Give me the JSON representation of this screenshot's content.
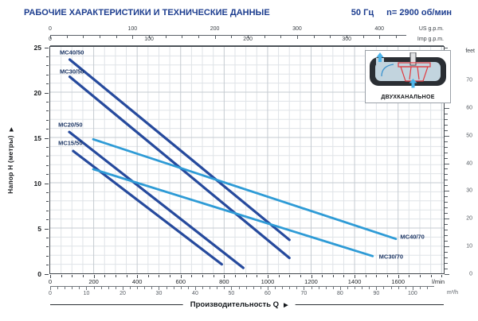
{
  "header": {
    "title": "РАБОЧИЕ ХАРАКТЕРИСТИКИ И ТЕХНИЧЕСКИЕ ДАННЫЕ",
    "frequency": "50 Гц",
    "speed": "n= 2900 об/мин"
  },
  "glyphs": {
    "right_arrow": "▶"
  },
  "colors": {
    "brand": "#1c3d8f",
    "dark_curve": "#264a9d",
    "light_curve": "#2e9bd6",
    "grid_minor": "#dfe3e7",
    "grid_major": "#c5cbd1",
    "plot_border": "#42474d",
    "impeller_outline": "#e03a40",
    "flow_arrow": "#4db4ea"
  },
  "inset": {
    "label": "ДВУХКАНАЛЬНОЕ"
  },
  "chart_data": {
    "type": "line",
    "title": "",
    "xlabel": "Производительность Q",
    "ylabel": "Напор H (метры)",
    "xlim": [
      0,
      1810
    ],
    "ylim": [
      0,
      25
    ],
    "grid": "on",
    "x_minor_step_lmin": 50,
    "x_major_step_lmin": 200,
    "y_minor_step_m": 1,
    "y_major_step_m": 5,
    "y_ticks_m": [
      0,
      5,
      10,
      15,
      20,
      25
    ],
    "series": [
      {
        "name": "MC40/50",
        "color_key": "dark_curve",
        "points": [
          [
            90,
            23.6
          ],
          [
            1100,
            3.7
          ]
        ],
        "label_at": [
          44,
          24.4
        ]
      },
      {
        "name": "MC30/50",
        "color_key": "dark_curve",
        "points": [
          [
            90,
            21.7
          ],
          [
            1100,
            1.7
          ]
        ],
        "label_at": [
          44,
          22.3
        ]
      },
      {
        "name": "MC20/50",
        "color_key": "dark_curve",
        "points": [
          [
            88,
            15.6
          ],
          [
            888,
            0.6
          ]
        ],
        "label_at": [
          37,
          16.4
        ]
      },
      {
        "name": "MC15/50",
        "color_key": "dark_curve",
        "points": [
          [
            106,
            13.5
          ],
          [
            789,
            1.0
          ]
        ],
        "label_at": [
          37,
          14.4
        ]
      },
      {
        "name": "MC40/70",
        "color_key": "light_curve",
        "points": [
          [
            198,
            14.8
          ],
          [
            1590,
            3.8
          ]
        ],
        "label_at": [
          1610,
          4.0
        ]
      },
      {
        "name": "MC30/70",
        "color_key": "light_curve",
        "points": [
          [
            198,
            11.5
          ],
          [
            1483,
            1.9
          ]
        ],
        "label_at": [
          1512,
          1.8
        ]
      }
    ],
    "axes": {
      "us_gpm": {
        "unit": "US g.p.m.",
        "majors": [
          0,
          100,
          200,
          300,
          400
        ],
        "minor_step": 20,
        "lmin_per_unit": 3.785,
        "line_frac": 0.905
      },
      "imp_gpm": {
        "unit": "Imp g.p.m.",
        "majors": [
          0,
          100,
          200,
          300
        ],
        "minor_step": 20,
        "lmin_per_unit": 4.546,
        "line_frac": 1.0
      },
      "lmin": {
        "unit": "l/min",
        "majors": [
          0,
          200,
          400,
          600,
          800,
          1000,
          1200,
          1400,
          1600
        ],
        "minor_step": 50,
        "lmin_per_unit": 1
      },
      "m3h": {
        "unit": "m³/h",
        "majors": [
          0,
          10,
          20,
          30,
          40,
          50,
          60,
          70,
          80,
          90,
          100
        ],
        "minor_step": 2,
        "lmin_per_unit": 16.667,
        "line_frac": 0.975
      },
      "feet": {
        "unit": "feet",
        "majors": [
          0,
          10,
          20,
          30,
          40,
          50,
          60,
          70
        ],
        "minor_step": 2,
        "m_per_unit": 0.3048
      }
    }
  }
}
